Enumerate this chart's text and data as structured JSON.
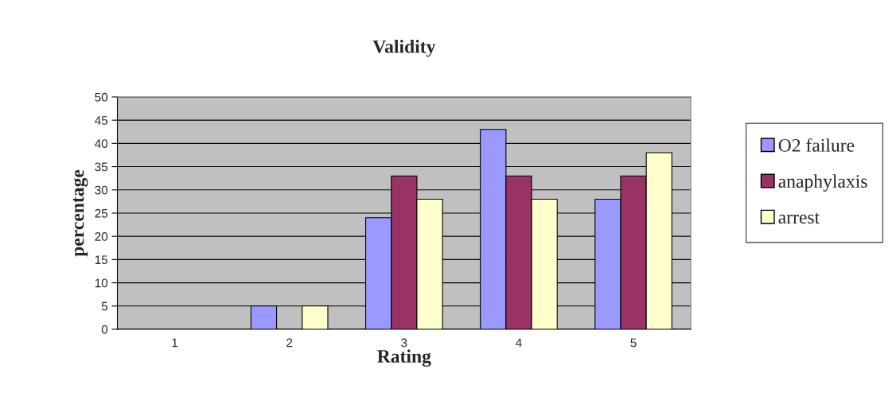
{
  "chart_data": {
    "type": "bar",
    "title": "Validity",
    "xlabel": "Rating",
    "ylabel": "percentage",
    "categories": [
      "1",
      "2",
      "3",
      "4",
      "5"
    ],
    "series": [
      {
        "name": "O2 failure",
        "color": "#9999ff",
        "values": [
          0,
          5,
          24,
          43,
          28
        ]
      },
      {
        "name": "anaphylaxis",
        "color": "#993366",
        "values": [
          0,
          0,
          33,
          33,
          33
        ]
      },
      {
        "name": "arrest",
        "color": "#ffffcc",
        "values": [
          0,
          5,
          28,
          28,
          38
        ]
      }
    ],
    "ylim": [
      0,
      50
    ],
    "yticks": [
      0,
      5,
      10,
      15,
      20,
      25,
      30,
      35,
      40,
      45,
      50
    ],
    "grid": "y",
    "legend": "right"
  }
}
